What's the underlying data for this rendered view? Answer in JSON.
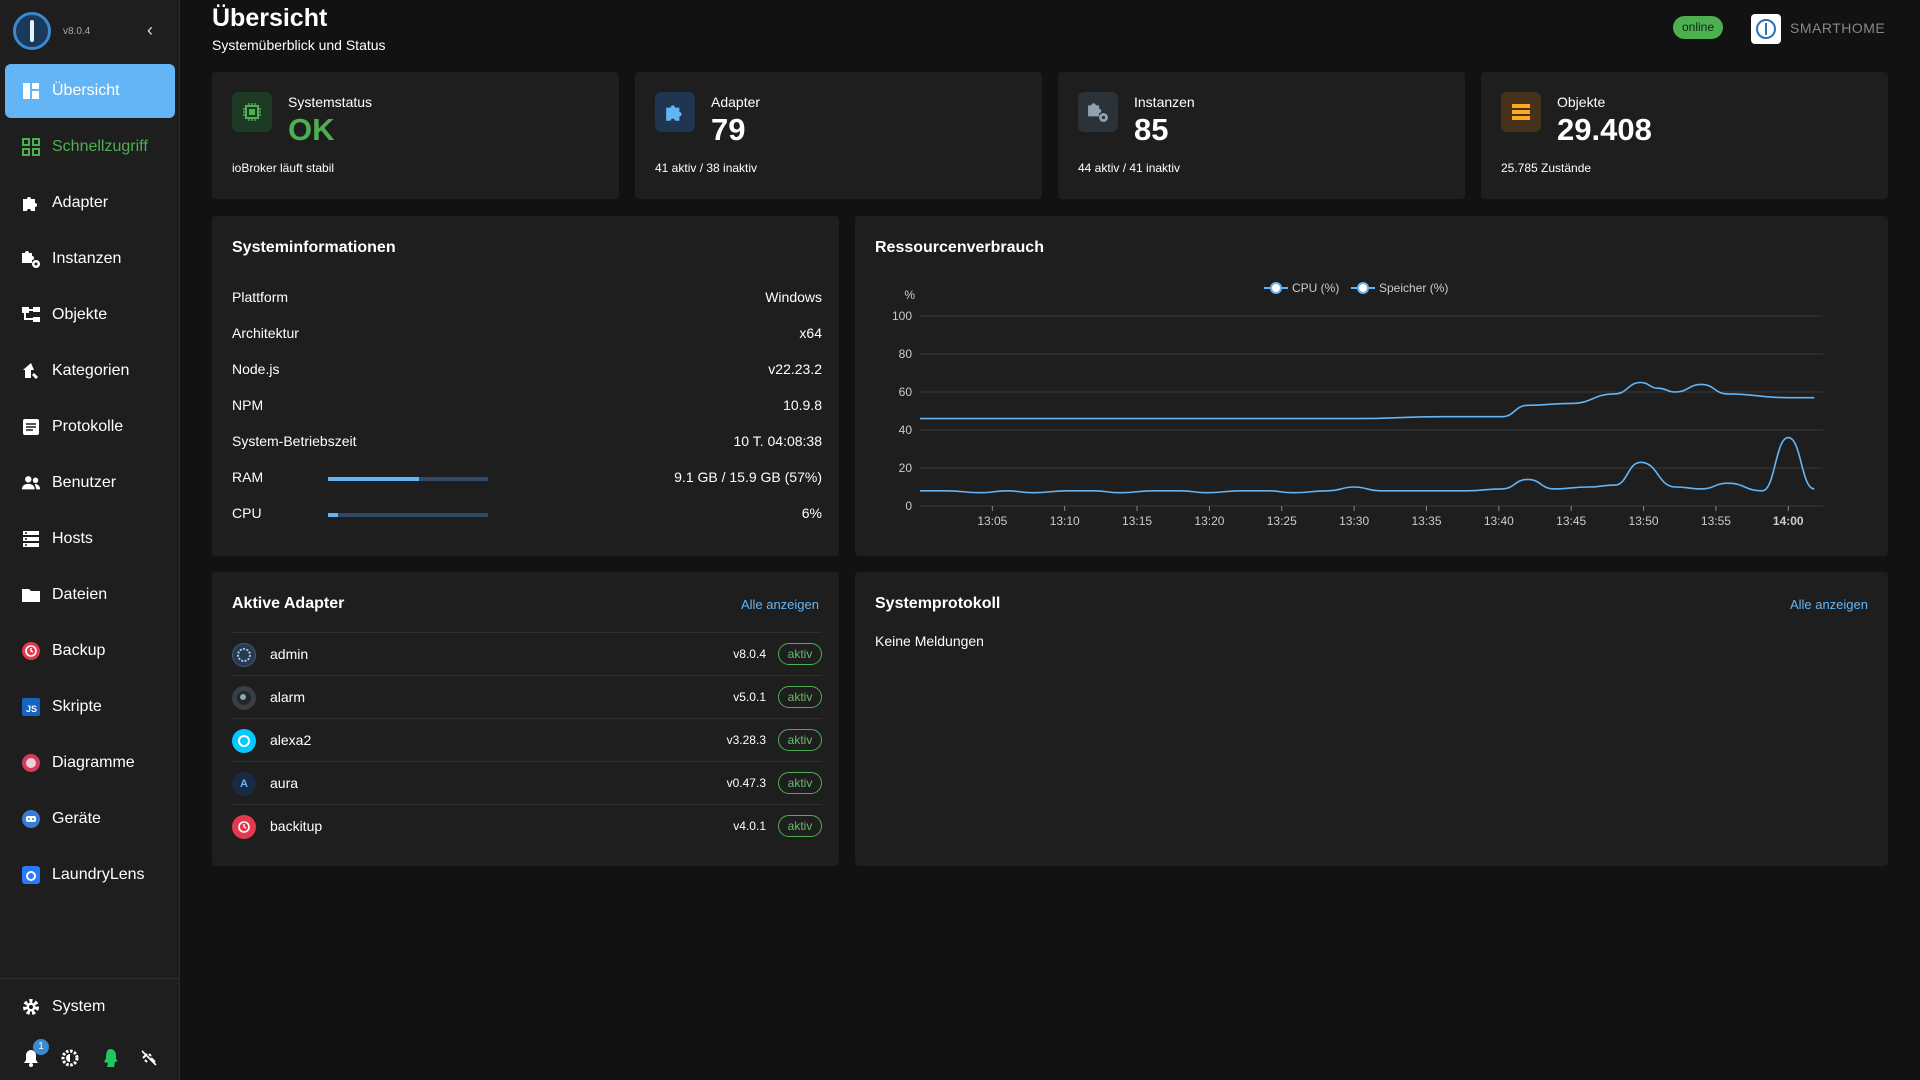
{
  "app": {
    "version": "v8.0.4",
    "host": "SMARTHOME",
    "status": "online"
  },
  "sidebar": {
    "items": [
      {
        "label": "Übersicht",
        "icon": "dashboard-icon"
      },
      {
        "label": "Schnellzugriff",
        "icon": "grid-icon"
      },
      {
        "label": "Adapter",
        "icon": "puzzle-icon"
      },
      {
        "label": "Instanzen",
        "icon": "puzzle-gear-icon"
      },
      {
        "label": "Objekte",
        "icon": "tree-icon"
      },
      {
        "label": "Kategorien",
        "icon": "home-tag-icon"
      },
      {
        "label": "Protokolle",
        "icon": "log-icon"
      },
      {
        "label": "Benutzer",
        "icon": "users-icon"
      },
      {
        "label": "Hosts",
        "icon": "server-icon"
      },
      {
        "label": "Dateien",
        "icon": "folder-icon"
      },
      {
        "label": "Backup",
        "icon": "backup-icon"
      },
      {
        "label": "Skripte",
        "icon": "js-icon"
      },
      {
        "label": "Diagramme",
        "icon": "chart-icon"
      },
      {
        "label": "Geräte",
        "icon": "device-icon"
      },
      {
        "label": "LaundryLens",
        "icon": "washer-icon"
      }
    ],
    "system_label": "System",
    "notification_count": "1"
  },
  "header": {
    "title": "Übersicht",
    "subtitle": "Systemüberblick und Status"
  },
  "stats": [
    {
      "label": "Systemstatus",
      "value": "OK",
      "foot": "ioBroker läuft stabil",
      "color": "#4caf50"
    },
    {
      "label": "Adapter",
      "value": "79",
      "foot": "41 aktiv / 38 inaktiv",
      "color": "#64b5f6"
    },
    {
      "label": "Instanzen",
      "value": "85",
      "foot": "44 aktiv / 41 inaktiv",
      "color": "#90a4ae"
    },
    {
      "label": "Objekte",
      "value": "29.408",
      "foot": "25.785 Zustände",
      "color": "#ffa726"
    }
  ],
  "sysinfo": {
    "title": "Systeminformationen",
    "rows": [
      {
        "key": "Plattform",
        "value": "Windows"
      },
      {
        "key": "Architektur",
        "value": "x64"
      },
      {
        "key": "Node.js",
        "value": "v22.23.2"
      },
      {
        "key": "NPM",
        "value": "10.9.8"
      },
      {
        "key": "System-Betriebszeit",
        "value": "10 T. 04:08:38"
      },
      {
        "key": "RAM",
        "value": "9.1 GB / 15.9 GB (57%)",
        "bar": 0.57
      },
      {
        "key": "CPU",
        "value": "6%",
        "bar": 0.06
      }
    ]
  },
  "resources": {
    "title": "Ressourcenverbrauch"
  },
  "chart_data": {
    "type": "line",
    "ylabel": "%",
    "ylim": [
      0,
      100
    ],
    "yticks": [
      "0",
      "20",
      "40",
      "60",
      "80",
      "100"
    ],
    "xticks": [
      "13:05",
      "13:10",
      "13:15",
      "13:20",
      "13:25",
      "13:30",
      "13:35",
      "13:40",
      "13:45",
      "13:50",
      "13:55",
      "14:00"
    ],
    "legend_position": "top-center",
    "grid": true,
    "series": [
      {
        "name": "CPU (%)",
        "color": "#64b5f6",
        "values": [
          [
            13.0,
            8
          ],
          [
            13.03,
            8
          ],
          [
            13.07,
            7
          ],
          [
            13.1,
            8
          ],
          [
            13.13,
            7
          ],
          [
            13.17,
            8
          ],
          [
            13.2,
            8
          ],
          [
            13.23,
            7
          ],
          [
            13.27,
            8
          ],
          [
            13.3,
            8
          ],
          [
            13.33,
            7
          ],
          [
            13.37,
            8
          ],
          [
            13.4,
            8
          ],
          [
            13.43,
            7
          ],
          [
            13.47,
            8
          ],
          [
            13.5,
            10
          ],
          [
            13.53,
            8
          ],
          [
            13.57,
            8
          ],
          [
            13.6,
            8
          ],
          [
            13.63,
            8
          ],
          [
            13.67,
            9
          ],
          [
            13.7,
            14
          ],
          [
            13.73,
            9
          ],
          [
            13.77,
            10
          ],
          [
            13.8,
            11
          ],
          [
            13.83,
            23
          ],
          [
            13.87,
            10
          ],
          [
            13.9,
            9
          ],
          [
            13.93,
            12
          ],
          [
            13.97,
            8
          ],
          [
            14.0,
            36
          ],
          [
            14.03,
            9
          ]
        ]
      },
      {
        "name": "Speicher (%)",
        "color": "#64b5f6",
        "values": [
          [
            13.0,
            46
          ],
          [
            13.1,
            46
          ],
          [
            13.2,
            46
          ],
          [
            13.3,
            46
          ],
          [
            13.4,
            46
          ],
          [
            13.5,
            46
          ],
          [
            13.6,
            47
          ],
          [
            13.67,
            47
          ],
          [
            13.7,
            53
          ],
          [
            13.75,
            54
          ],
          [
            13.8,
            59
          ],
          [
            13.83,
            65
          ],
          [
            13.85,
            62
          ],
          [
            13.87,
            60
          ],
          [
            13.9,
            64
          ],
          [
            13.93,
            59
          ],
          [
            14.0,
            57
          ],
          [
            14.03,
            57
          ]
        ]
      }
    ]
  },
  "adapters": {
    "title": "Aktive Adapter",
    "link": "Alle anzeigen",
    "items": [
      {
        "name": "admin",
        "version": "v8.0.4",
        "status": "aktiv",
        "icon": "admin-icon"
      },
      {
        "name": "alarm",
        "version": "v5.0.1",
        "status": "aktiv",
        "icon": "alarm-icon"
      },
      {
        "name": "alexa2",
        "version": "v3.28.3",
        "status": "aktiv",
        "icon": "alexa-icon"
      },
      {
        "name": "aura",
        "version": "v0.47.3",
        "status": "aktiv",
        "icon": "aura-icon"
      },
      {
        "name": "backitup",
        "version": "v4.0.1",
        "status": "aktiv",
        "icon": "backitup-icon"
      }
    ]
  },
  "syslog": {
    "title": "Systemprotokoll",
    "link": "Alle anzeigen",
    "empty": "Keine Meldungen"
  }
}
